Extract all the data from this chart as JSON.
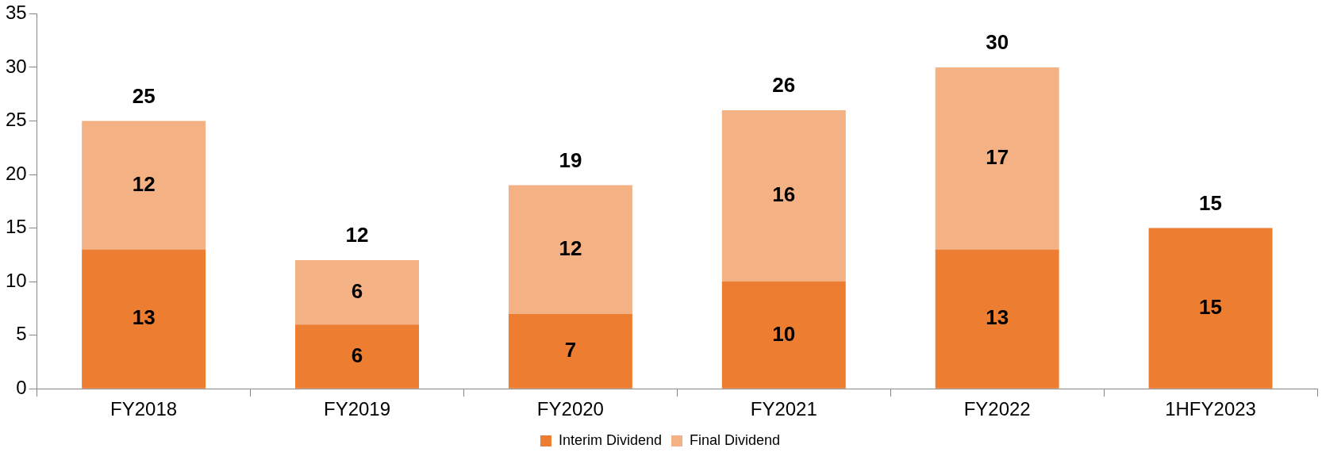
{
  "chart_data": {
    "type": "bar",
    "stacked": true,
    "categories": [
      "FY2018",
      "FY2019",
      "FY2020",
      "FY2021",
      "FY2022",
      "1HFY2023"
    ],
    "series": [
      {
        "name": "Interim Dividend",
        "color": "#ed7d31",
        "values": [
          13,
          6,
          7,
          10,
          13,
          15
        ]
      },
      {
        "name": "Final Dividend",
        "color": "#f4b183",
        "values": [
          12,
          6,
          12,
          16,
          17,
          null
        ]
      }
    ],
    "ylim": [
      0,
      35
    ],
    "yticks": [
      0,
      5,
      10,
      15,
      20,
      25,
      30,
      35
    ],
    "grid": false,
    "legend": "bottom",
    "data_labels": true,
    "totals": [
      "25",
      "12",
      "19",
      "26",
      "30",
      "15"
    ]
  }
}
